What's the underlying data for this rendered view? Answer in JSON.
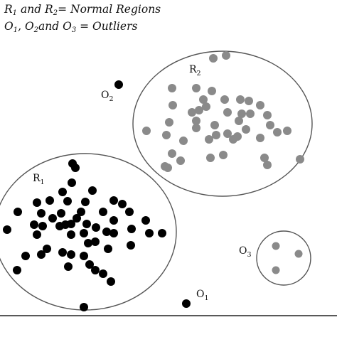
{
  "legend": {
    "line1": {
      "r1": "R",
      "r1_sub": "1",
      "and": " and ",
      "r2": "R",
      "r2_sub": "2",
      "rest": "= Normal Regions"
    },
    "line2": {
      "o1": "O",
      "o1_sub": "1",
      "sep": ", ",
      "o2": "O",
      "o2_sub": "2",
      "and": "and ",
      "o3": "O",
      "o3_sub": "3",
      "rest": " = Outliers"
    }
  },
  "labels": {
    "r1": {
      "base": "R",
      "sub": "1"
    },
    "r2": {
      "base": "R",
      "sub": "2"
    },
    "o1": {
      "base": "O",
      "sub": "1"
    },
    "o2": {
      "base": "O",
      "sub": "2"
    },
    "o3": {
      "base": "O",
      "sub": "3"
    }
  },
  "colors": {
    "normal_r1": "#000000",
    "normal_r2": "#8a8a8a",
    "outlier": "#000000",
    "outline": "#555555",
    "baseline": "#222222"
  }
}
